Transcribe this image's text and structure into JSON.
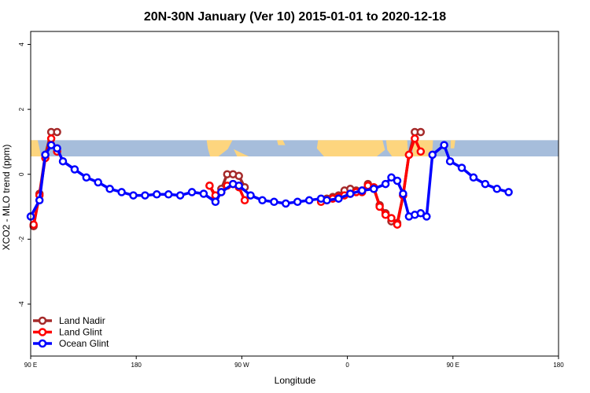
{
  "chart_data": {
    "type": "line",
    "title": "20N-30N January (Ver 10)   2015-01-01 to 2020-12-18",
    "xlabel": "Longitude",
    "ylabel": "XCO2 - MLO trend (ppm)",
    "xlim": [
      90,
      540
    ],
    "ylim": [
      -5.6,
      4.4
    ],
    "xticks": [
      {
        "value": 90,
        "label": "90 E"
      },
      {
        "value": 180,
        "label": "180"
      },
      {
        "value": 270,
        "label": "90 W"
      },
      {
        "value": 360,
        "label": "0"
      },
      {
        "value": 450,
        "label": "90 E"
      },
      {
        "value": 540,
        "label": "180"
      }
    ],
    "yticks": [
      {
        "value": -4,
        "label": "-4"
      },
      {
        "value": -2,
        "label": "-2"
      },
      {
        "value": 0,
        "label": "0"
      },
      {
        "value": 2,
        "label": "2"
      },
      {
        "value": 4,
        "label": "4"
      }
    ],
    "legend_position": "bottom-left",
    "map_band": {
      "ymin": 0.55,
      "ymax": 1.05,
      "ocean_color": "#a6bddb",
      "land_color": "#fdd57e"
    },
    "series": [
      {
        "name": "Land Nadir",
        "color": "#a52a2a",
        "segments": [
          [
            [
              92.5,
              -1.6
            ],
            [
              97.5,
              -0.6
            ],
            [
              102.5,
              0.6
            ],
            [
              107.5,
              1.3
            ],
            [
              112.5,
              1.3
            ]
          ],
          [
            [
              242.5,
              -0.35
            ],
            [
              247.5,
              -0.7
            ],
            [
              252.5,
              -0.45
            ],
            [
              257.5,
              0.0
            ],
            [
              262.5,
              0.0
            ],
            [
              267.5,
              -0.05
            ],
            [
              272.5,
              -0.4
            ]
          ],
          [
            [
              337.5,
              -0.8
            ],
            [
              342.5,
              -0.75
            ],
            [
              347.5,
              -0.7
            ],
            [
              352.5,
              -0.65
            ],
            [
              357.5,
              -0.5
            ],
            [
              362.5,
              -0.45
            ],
            [
              367.5,
              -0.5
            ],
            [
              372.5,
              -0.5
            ],
            [
              377.5,
              -0.3
            ],
            [
              382.5,
              -0.45
            ],
            [
              387.5,
              -0.95
            ],
            [
              392.5,
              -1.2
            ],
            [
              397.5,
              -1.45
            ],
            [
              402.5,
              -1.5
            ],
            [
              407.5,
              -0.65
            ],
            [
              412.5,
              0.6
            ],
            [
              417.5,
              1.3
            ],
            [
              422.5,
              1.3
            ]
          ]
        ]
      },
      {
        "name": "Land Glint",
        "color": "#ff0000",
        "segments": [
          [
            [
              92.5,
              -1.55
            ],
            [
              97.5,
              -0.65
            ],
            [
              102.5,
              0.5
            ],
            [
              107.5,
              1.1
            ],
            [
              112.5,
              0.7
            ]
          ],
          [
            [
              242.5,
              -0.35
            ],
            [
              247.5,
              -0.65
            ],
            [
              252.5,
              -0.55
            ],
            [
              257.5,
              -0.35
            ],
            [
              262.5,
              -0.3
            ],
            [
              267.5,
              -0.4
            ],
            [
              272.5,
              -0.8
            ]
          ],
          [
            [
              337.5,
              -0.85
            ],
            [
              342.5,
              -0.8
            ],
            [
              347.5,
              -0.75
            ],
            [
              352.5,
              -0.7
            ],
            [
              357.5,
              -0.65
            ],
            [
              362.5,
              -0.6
            ],
            [
              367.5,
              -0.55
            ],
            [
              372.5,
              -0.55
            ],
            [
              377.5,
              -0.35
            ],
            [
              382.5,
              -0.4
            ],
            [
              387.5,
              -1.0
            ],
            [
              392.5,
              -1.25
            ],
            [
              397.5,
              -1.35
            ],
            [
              402.5,
              -1.55
            ],
            [
              407.5,
              -0.65
            ],
            [
              412.5,
              0.6
            ],
            [
              417.5,
              1.1
            ],
            [
              422.5,
              0.7
            ]
          ]
        ]
      },
      {
        "name": "Ocean Glint",
        "color": "#0000ff",
        "segments": [
          [
            [
              90,
              -1.3
            ],
            [
              97.5,
              -0.8
            ],
            [
              102.5,
              0.6
            ],
            [
              107.5,
              0.9
            ],
            [
              112.5,
              0.8
            ],
            [
              117.5,
              0.4
            ],
            [
              127.5,
              0.15
            ],
            [
              137.5,
              -0.1
            ],
            [
              147.5,
              -0.25
            ],
            [
              157.5,
              -0.45
            ],
            [
              167.5,
              -0.55
            ],
            [
              177.5,
              -0.65
            ],
            [
              187.5,
              -0.65
            ],
            [
              197.5,
              -0.62
            ],
            [
              207.5,
              -0.62
            ],
            [
              217.5,
              -0.65
            ],
            [
              227.5,
              -0.55
            ],
            [
              237.5,
              -0.6
            ],
            [
              247.5,
              -0.85
            ],
            [
              252.5,
              -0.55
            ],
            [
              262.5,
              -0.3
            ],
            [
              267.5,
              -0.35
            ],
            [
              277.5,
              -0.65
            ],
            [
              287.5,
              -0.8
            ],
            [
              297.5,
              -0.85
            ],
            [
              307.5,
              -0.9
            ],
            [
              317.5,
              -0.85
            ],
            [
              327.5,
              -0.8
            ],
            [
              337.5,
              -0.75
            ],
            [
              342.5,
              -0.8
            ],
            [
              352.5,
              -0.75
            ],
            [
              362.5,
              -0.6
            ],
            [
              372.5,
              -0.5
            ],
            [
              382.5,
              -0.45
            ],
            [
              392.5,
              -0.3
            ],
            [
              397.5,
              -0.1
            ],
            [
              402.5,
              -0.2
            ],
            [
              407.5,
              -0.6
            ],
            [
              412.5,
              -1.3
            ],
            [
              417.5,
              -1.25
            ],
            [
              422.5,
              -1.2
            ],
            [
              427.5,
              -1.3
            ],
            [
              432.5,
              0.6
            ],
            [
              442.5,
              0.9
            ],
            [
              447.5,
              0.4
            ],
            [
              457.5,
              0.2
            ],
            [
              467.5,
              -0.1
            ],
            [
              477.5,
              -0.3
            ],
            [
              487.5,
              -0.45
            ],
            [
              497.5,
              -0.55
            ]
          ]
        ]
      }
    ]
  }
}
